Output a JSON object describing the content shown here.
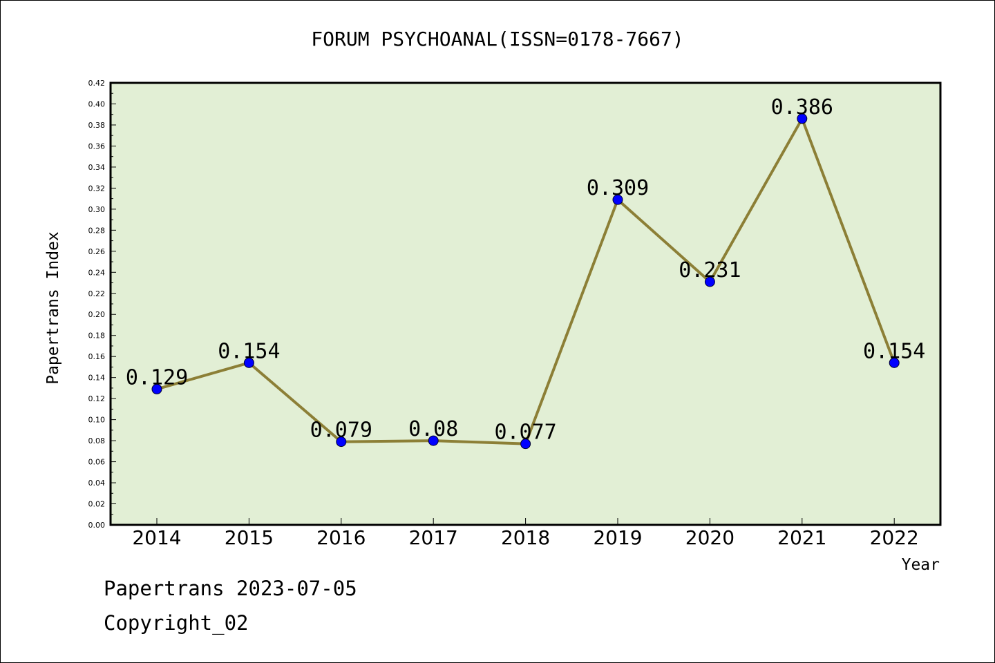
{
  "chart_data": {
    "type": "line",
    "title": "FORUM PSYCHOANAL(ISSN=0178-7667)",
    "xlabel": "Year",
    "ylabel": "Papertrans Index",
    "categories": [
      "2014",
      "2015",
      "2016",
      "2017",
      "2018",
      "2019",
      "2020",
      "2021",
      "2022"
    ],
    "series": [
      {
        "values": [
          0.129,
          0.154,
          0.079,
          0.08,
          0.077,
          0.309,
          0.231,
          0.386,
          0.154
        ],
        "data_labels": [
          "0.129",
          "0.154",
          "0.079",
          "0.08",
          "0.077",
          "0.309",
          "0.231",
          "0.386",
          "0.154"
        ]
      }
    ],
    "ylim": [
      0,
      0.42
    ],
    "ytick_labels": [
      "0.00",
      "0.02",
      "0.04",
      "0.06",
      "0.08",
      "0.10",
      "0.12",
      "0.14",
      "0.16",
      "0.18",
      "0.20",
      "0.22",
      "0.24",
      "0.26",
      "0.28",
      "0.30",
      "0.32",
      "0.34",
      "0.36",
      "0.38",
      "0.40",
      "0.42"
    ],
    "grid": false,
    "colors": {
      "plot_background": "#e2efd5",
      "line": "#8c7f36",
      "marker": "#0000ff"
    }
  },
  "footer": {
    "line1": "Papertrans 2023-07-05",
    "line2": "Copyright_02"
  }
}
